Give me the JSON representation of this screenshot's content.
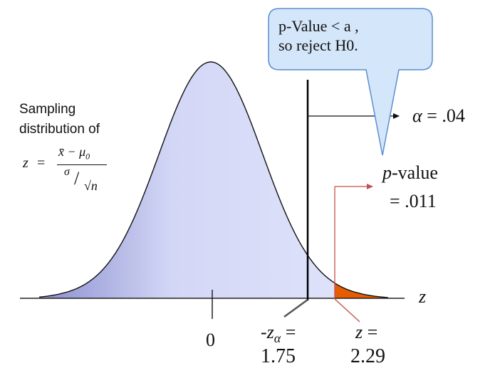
{
  "callout": {
    "line1": "p-Value < a ,",
    "line2": "so reject H0."
  },
  "sampling_label": {
    "line1": "Sampling",
    "line2": "distribution of",
    "z_symbol": "z",
    "equals": "=",
    "numerator": "x̄ − μ",
    "numerator_sub": "0",
    "denominator_sigma": "σ",
    "denominator_slash": "/",
    "denominator_root": "√n"
  },
  "alpha_label": {
    "symbol": "α",
    "rest": "= .04"
  },
  "pvalue_label": {
    "p": "p",
    "rest": "-value",
    "value": "= .011"
  },
  "axis": {
    "variable": "z",
    "zero_tick": "0"
  },
  "critical": {
    "line1_prefix": "-z",
    "line1_sub": "α",
    "line1_suffix": " =",
    "value": "1.75"
  },
  "observed": {
    "line1": "z =",
    "value": "2.29"
  },
  "colors": {
    "curve_fill_light": "#dfe3fb",
    "curve_fill_dark": "#8b8fcf",
    "tail_fill": "#e65c00",
    "callout_fill": "#d4e6f9",
    "callout_stroke": "#5b8ed0",
    "arrow_red": "#c0504d"
  }
}
